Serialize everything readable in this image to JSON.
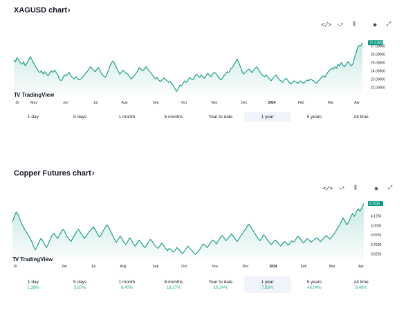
{
  "widgets": [
    {
      "title": "XAGUSD chart",
      "chevron": "›",
      "toolbar": [
        {
          "icon": "embed-code-icon",
          "glyph": "</>"
        },
        {
          "icon": "compare-chart-icon",
          "glyph": "⤻"
        },
        {
          "icon": "indicators-icon",
          "glyph": "⫼"
        },
        {
          "icon": "camera-icon",
          "glyph": "◉"
        },
        {
          "icon": "fullscreen-icon",
          "glyph": "⤢"
        }
      ],
      "logo": "TradingView",
      "logo_mark": "TV",
      "chart_data": {
        "type": "area",
        "x_labels": [
          "10",
          "May",
          "Jun",
          "Jul",
          "Aug",
          "Sep",
          "Oct",
          "Nov",
          "Dec",
          "2024",
          "Feb",
          "Mar",
          "Apr"
        ],
        "y_ticks": [
          "27.00000",
          "26.00000",
          "25.00000",
          "24.00000",
          "23.00000",
          "22.00000"
        ],
        "ylim": [
          21.2,
          28.4
        ],
        "last_value_label": "27.41650",
        "line_color": "#089981",
        "values": [
          25.4,
          25.1,
          25.6,
          25.3,
          25.0,
          24.8,
          25.1,
          24.6,
          24.9,
          25.3,
          25.7,
          25.4,
          25.0,
          24.6,
          24.3,
          24.0,
          23.8,
          24.0,
          23.6,
          23.9,
          23.6,
          23.4,
          23.7,
          24.0,
          23.8,
          24.1,
          23.8,
          23.5,
          23.0,
          22.8,
          23.1,
          23.5,
          23.4,
          23.6,
          23.8,
          23.4,
          23.2,
          23.0,
          23.3,
          23.1,
          22.9,
          23.0,
          23.2,
          23.4,
          23.7,
          23.9,
          24.2,
          24.5,
          24.3,
          24.1,
          23.9,
          24.2,
          24.4,
          24.0,
          23.6,
          23.4,
          23.2,
          23.5,
          24.0,
          24.6,
          25.0,
          25.2,
          24.8,
          24.4,
          24.0,
          23.6,
          23.8,
          24.1,
          23.9,
          23.7,
          23.6,
          23.3,
          23.0,
          23.2,
          23.4,
          23.7,
          24.0,
          24.4,
          24.2,
          24.0,
          24.2,
          24.5,
          24.3,
          24.0,
          23.8,
          23.5,
          23.3,
          23.0,
          23.2,
          22.9,
          22.7,
          22.9,
          23.1,
          23.0,
          22.8,
          22.6,
          22.7,
          22.4,
          22.2,
          21.8,
          21.5,
          21.9,
          22.3,
          22.2,
          22.5,
          22.8,
          22.6,
          22.9,
          23.2,
          23.0,
          22.9,
          23.3,
          23.6,
          23.4,
          23.2,
          23.5,
          23.3,
          23.1,
          23.4,
          23.7,
          23.5,
          23.3,
          23.6,
          23.8,
          23.7,
          23.4,
          23.2,
          22.9,
          23.1,
          23.4,
          23.6,
          23.9,
          23.8,
          24.2,
          24.4,
          24.7,
          25.0,
          25.4,
          25.1,
          24.5,
          24.0,
          23.6,
          23.8,
          24.0,
          24.2,
          24.1,
          23.8,
          24.0,
          24.3,
          24.5,
          24.2,
          23.9,
          23.6,
          23.4,
          23.3,
          23.5,
          23.2,
          23.0,
          22.8,
          23.1,
          23.3,
          23.5,
          23.2,
          22.9,
          22.8,
          22.6,
          22.9,
          23.1,
          22.9,
          22.6,
          22.4,
          22.6,
          22.8,
          22.7,
          22.5,
          22.6,
          22.8,
          22.6,
          22.5,
          22.7,
          22.9,
          22.8,
          23.0,
          22.9,
          22.8,
          22.6,
          22.5,
          22.8,
          23.0,
          23.2,
          23.4,
          23.2,
          23.6,
          23.9,
          24.1,
          24.3,
          24.2,
          24.5,
          24.3,
          24.8,
          24.6,
          25.0,
          24.7,
          24.5,
          24.8,
          25.1,
          24.9,
          24.6,
          24.8,
          25.5,
          26.1,
          26.8,
          27.1,
          27.0,
          27.42
        ]
      },
      "ranges": [
        {
          "label": "1 day",
          "change": ""
        },
        {
          "label": "5 days",
          "change": ""
        },
        {
          "label": "1 month",
          "change": ""
        },
        {
          "label": "6 months",
          "change": ""
        },
        {
          "label": "Year to date",
          "change": ""
        },
        {
          "label": "1 year",
          "change": "",
          "active": true
        },
        {
          "label": "5 years",
          "change": ""
        },
        {
          "label": "All time",
          "change": ""
        }
      ]
    },
    {
      "title": "Copper Futures chart",
      "chevron": "›",
      "toolbar": [
        {
          "icon": "embed-code-icon",
          "glyph": "</>"
        },
        {
          "icon": "compare-chart-icon",
          "glyph": "⤻"
        },
        {
          "icon": "indicators-icon",
          "glyph": "⫼"
        },
        {
          "icon": "camera-icon",
          "glyph": "◉"
        },
        {
          "icon": "fullscreen-icon",
          "glyph": "⤢"
        }
      ],
      "logo": "TradingView",
      "logo_mark": "TV",
      "chart_data": {
        "type": "area",
        "x_labels": [
          "10",
          "Jun",
          "Jul",
          "Aug",
          "Sep",
          "Oct",
          "Nov",
          "Dec",
          "2024",
          "Feb",
          "Mar",
          "Apr"
        ],
        "y_ticks": [
          "4.1250",
          "4.0000",
          "3.8750",
          "3.7500",
          "3.6250"
        ],
        "ylim": [
          3.55,
          4.35
        ],
        "last_value_label": "4.2935",
        "line_color": "#089981",
        "values": [
          4.05,
          4.12,
          4.18,
          4.14,
          4.08,
          4.02,
          3.97,
          3.93,
          3.89,
          3.85,
          3.8,
          3.74,
          3.68,
          3.72,
          3.78,
          3.83,
          3.8,
          3.75,
          3.71,
          3.76,
          3.82,
          3.87,
          3.9,
          3.86,
          3.83,
          3.88,
          3.93,
          3.95,
          3.9,
          3.85,
          3.82,
          3.79,
          3.84,
          3.88,
          3.92,
          3.95,
          3.91,
          3.87,
          3.83,
          3.86,
          3.9,
          3.93,
          3.96,
          3.98,
          3.94,
          3.89,
          3.85,
          3.88,
          3.93,
          3.97,
          4.01,
          3.98,
          3.92,
          3.87,
          3.82,
          3.78,
          3.82,
          3.86,
          3.83,
          3.78,
          3.75,
          3.79,
          3.84,
          3.81,
          3.76,
          3.73,
          3.77,
          3.81,
          3.78,
          3.74,
          3.71,
          3.74,
          3.78,
          3.82,
          3.79,
          3.75,
          3.72,
          3.7,
          3.73,
          3.77,
          3.74,
          3.7,
          3.67,
          3.7,
          3.68,
          3.65,
          3.67,
          3.71,
          3.69,
          3.66,
          3.63,
          3.66,
          3.7,
          3.73,
          3.7,
          3.67,
          3.64,
          3.62,
          3.65,
          3.68,
          3.72,
          3.76,
          3.74,
          3.71,
          3.74,
          3.78,
          3.81,
          3.79,
          3.76,
          3.8,
          3.84,
          3.87,
          3.84,
          3.8,
          3.83,
          3.86,
          3.89,
          3.86,
          3.82,
          3.79,
          3.83,
          3.87,
          3.9,
          3.94,
          3.98,
          4.02,
          3.99,
          3.95,
          3.91,
          3.87,
          3.83,
          3.8,
          3.84,
          3.88,
          3.85,
          3.81,
          3.78,
          3.75,
          3.78,
          3.81,
          3.79,
          3.76,
          3.73,
          3.76,
          3.79,
          3.77,
          3.74,
          3.77,
          3.8,
          3.78,
          3.82,
          3.86,
          3.84,
          3.8,
          3.77,
          3.8,
          3.83,
          3.81,
          3.78,
          3.8,
          3.82,
          3.84,
          3.82,
          3.79,
          3.81,
          3.84,
          3.87,
          3.85,
          3.82,
          3.85,
          3.88,
          3.92,
          3.96,
          4.0,
          4.05,
          4.1,
          4.06,
          4.01,
          4.05,
          4.11,
          4.16,
          4.12,
          4.18,
          4.22,
          4.19,
          4.24,
          4.29
        ]
      },
      "ranges": [
        {
          "label": "1 day",
          "change": "1.38%"
        },
        {
          "label": "5 days",
          "change": "5.87%"
        },
        {
          "label": "1 month",
          "change": "9.40%"
        },
        {
          "label": "6 months",
          "change": "18.27%"
        },
        {
          "label": "Year to date",
          "change": "10.24%"
        },
        {
          "label": "1 year",
          "change": "7.83%",
          "active": true
        },
        {
          "label": "5 years",
          "change": "48.04%"
        },
        {
          "label": "All time",
          "change": "9.46%"
        }
      ]
    }
  ]
}
